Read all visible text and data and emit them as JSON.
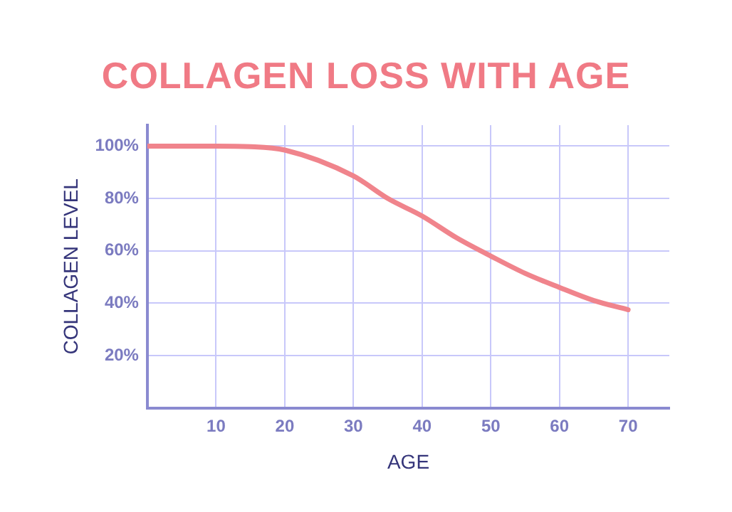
{
  "chart_data": {
    "type": "line",
    "title": "COLLAGEN LOSS WITH AGE",
    "xlabel": "AGE",
    "ylabel": "COLLAGEN LEVEL",
    "x": [
      0,
      10,
      15,
      20,
      30,
      35,
      40,
      45,
      50,
      55,
      60,
      65,
      70
    ],
    "series": [
      {
        "color": "#f0848c",
        "values": [
          100,
          100,
          99.8,
          98.5,
          88.6,
          80,
          73.3,
          65,
          58,
          51.4,
          46,
          41,
          37.5
        ]
      }
    ],
    "xlim": [
      0,
      76
    ],
    "xticks": [
      {
        "value": 0,
        "label": null
      },
      10,
      20,
      30,
      40,
      50,
      60,
      70
    ],
    "ylim": [
      0,
      108
    ],
    "yticks": [
      {
        "value": 0,
        "label": null
      },
      {
        "value": 20,
        "label": "20%"
      },
      {
        "value": 40,
        "label": "40%"
      },
      {
        "value": 60,
        "label": "60%"
      },
      {
        "value": 80,
        "label": "80%"
      },
      {
        "value": 100,
        "label": "100%"
      }
    ],
    "grid": true,
    "legend": false,
    "marker": "none",
    "line_style": "solid"
  }
}
